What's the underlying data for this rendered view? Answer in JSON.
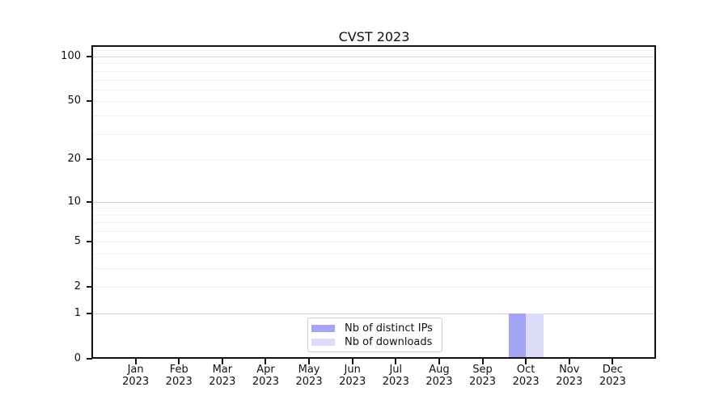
{
  "chart_data": {
    "type": "bar",
    "title": "CVST 2023",
    "yscale": "log1p",
    "ylim": [
      0,
      117
    ],
    "grid": "horizontal",
    "legend_position": "bottom-center",
    "y_ticks": [
      0,
      1,
      2,
      5,
      10,
      20,
      50,
      100
    ],
    "major_gridlines": [
      1,
      10,
      100
    ],
    "minor_gridlines": [
      2,
      3,
      4,
      5,
      6,
      7,
      8,
      9,
      20,
      30,
      40,
      50,
      60,
      70,
      80,
      90,
      110
    ],
    "categories": [
      [
        "Jan",
        "2023"
      ],
      [
        "Feb",
        "2023"
      ],
      [
        "Mar",
        "2023"
      ],
      [
        "Apr",
        "2023"
      ],
      [
        "May",
        "2023"
      ],
      [
        "Jun",
        "2023"
      ],
      [
        "Jul",
        "2023"
      ],
      [
        "Aug",
        "2023"
      ],
      [
        "Sep",
        "2023"
      ],
      [
        "Oct",
        "2023"
      ],
      [
        "Nov",
        "2023"
      ],
      [
        "Dec",
        "2023"
      ]
    ],
    "series": [
      {
        "name": "Nb of distinct IPs",
        "color": "#a5a5f6",
        "values": [
          0,
          0,
          0,
          0,
          0,
          0,
          0,
          0,
          0,
          1,
          0,
          0
        ]
      },
      {
        "name": "Nb of downloads",
        "color": "#dcdcf9",
        "values": [
          0,
          0,
          0,
          0,
          0,
          0,
          0,
          0,
          0,
          1,
          0,
          0
        ]
      }
    ],
    "colors": {
      "spine": "#111111",
      "major_grid": "#d4d4d4",
      "minor_grid": "#f0f0f0",
      "legend_border": "#cccccc",
      "text": "#111111",
      "background": "#ffffff"
    }
  }
}
